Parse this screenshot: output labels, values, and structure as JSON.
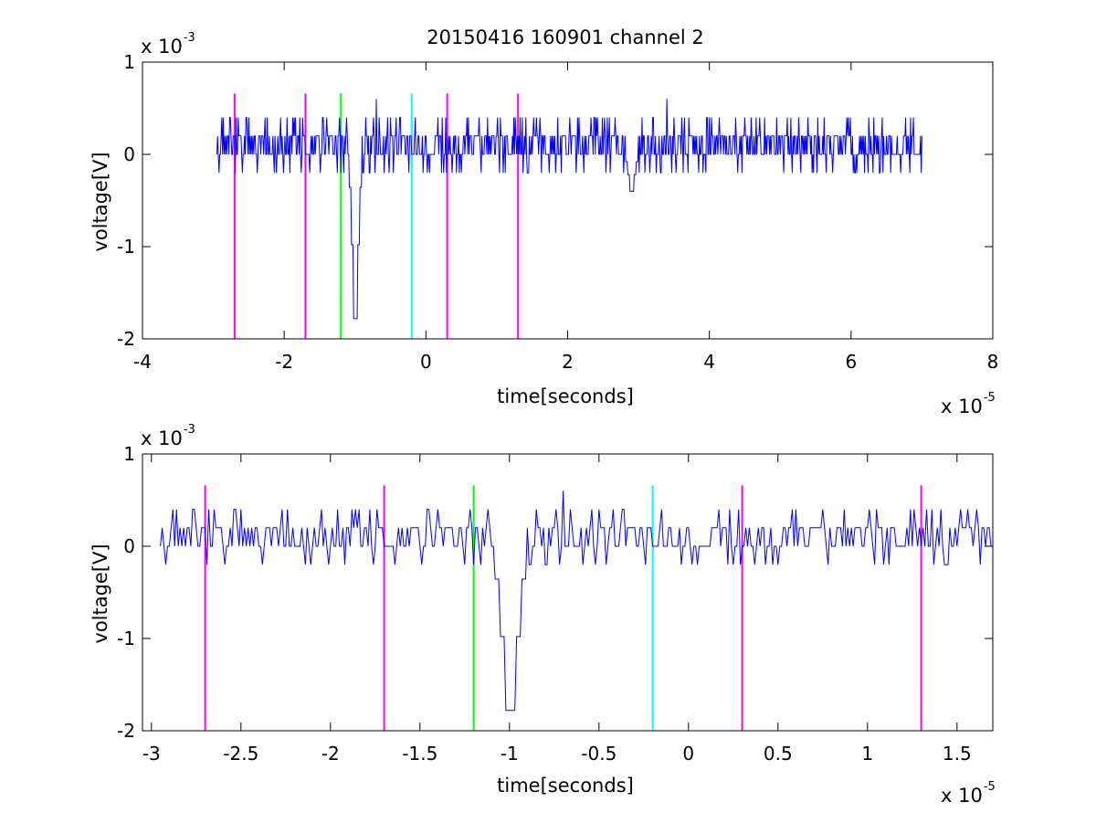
{
  "title": "20150416 160901 channel 2",
  "chart_data": [
    {
      "type": "line",
      "title": "20150416 160901 channel 2",
      "xlabel": "time[seconds]",
      "ylabel": "voltage[V]",
      "x_multiplier": "x 10",
      "x_exponent": "-5",
      "y_multiplier": "x 10",
      "y_exponent": "-3",
      "xlim": [
        -4,
        8
      ],
      "ylim": [
        -2,
        1
      ],
      "xticks": [
        "-4",
        "-2",
        "0",
        "2",
        "4",
        "6",
        "8"
      ],
      "yticks": [
        "1",
        "0",
        "-1",
        "-2"
      ],
      "grid": false,
      "series": [
        {
          "color": "#0000ff",
          "x_range": [
            -2.95,
            7.0
          ],
          "baseline_levels": [
            0.0,
            0.2
          ],
          "noise_excursions": [
            -0.2,
            0.4
          ],
          "spikes": [
            {
              "x": -1.0,
              "y": -1.78
            },
            {
              "x": -0.7,
              "y": 0.6
            },
            {
              "x": 2.9,
              "y": -0.4
            },
            {
              "x": 3.4,
              "y": 0.6
            }
          ]
        }
      ],
      "vertical_markers": [
        {
          "x": -2.7,
          "color": "#ff00ff"
        },
        {
          "x": -1.7,
          "color": "#ff00ff"
        },
        {
          "x": -1.2,
          "color": "#00ff00"
        },
        {
          "x": -0.2,
          "color": "#00ffff"
        },
        {
          "x": 0.3,
          "color": "#ff00ff"
        },
        {
          "x": 1.3,
          "color": "#ff00ff"
        }
      ]
    },
    {
      "type": "line",
      "xlabel": "time[seconds]",
      "ylabel": "voltage[V]",
      "x_multiplier": "x 10",
      "x_exponent": "-5",
      "y_multiplier": "x 10",
      "y_exponent": "-3",
      "xlim": [
        -3.05,
        1.7
      ],
      "ylim": [
        -2,
        1
      ],
      "xticks": [
        "-3",
        "-2.5",
        "-2",
        "-1.5",
        "-1",
        "-0.5",
        "0",
        "0.5",
        "1",
        "1.5"
      ],
      "yticks": [
        "1",
        "0",
        "-1",
        "-2"
      ],
      "grid": false,
      "series": [
        {
          "color": "#0000ff",
          "x_range": [
            -2.95,
            1.7
          ],
          "baseline_levels": [
            0.0,
            0.2
          ],
          "noise_excursions": [
            -0.2,
            0.4
          ],
          "spikes": [
            {
              "x": -1.0,
              "y": -1.78
            },
            {
              "x": -0.7,
              "y": 0.6
            }
          ]
        }
      ],
      "vertical_markers": [
        {
          "x": -2.7,
          "color": "#ff00ff"
        },
        {
          "x": -1.7,
          "color": "#ff00ff"
        },
        {
          "x": -1.2,
          "color": "#00ff00"
        },
        {
          "x": -0.2,
          "color": "#00ffff"
        },
        {
          "x": 0.3,
          "color": "#ff00ff"
        },
        {
          "x": 1.3,
          "color": "#ff00ff"
        }
      ]
    }
  ]
}
